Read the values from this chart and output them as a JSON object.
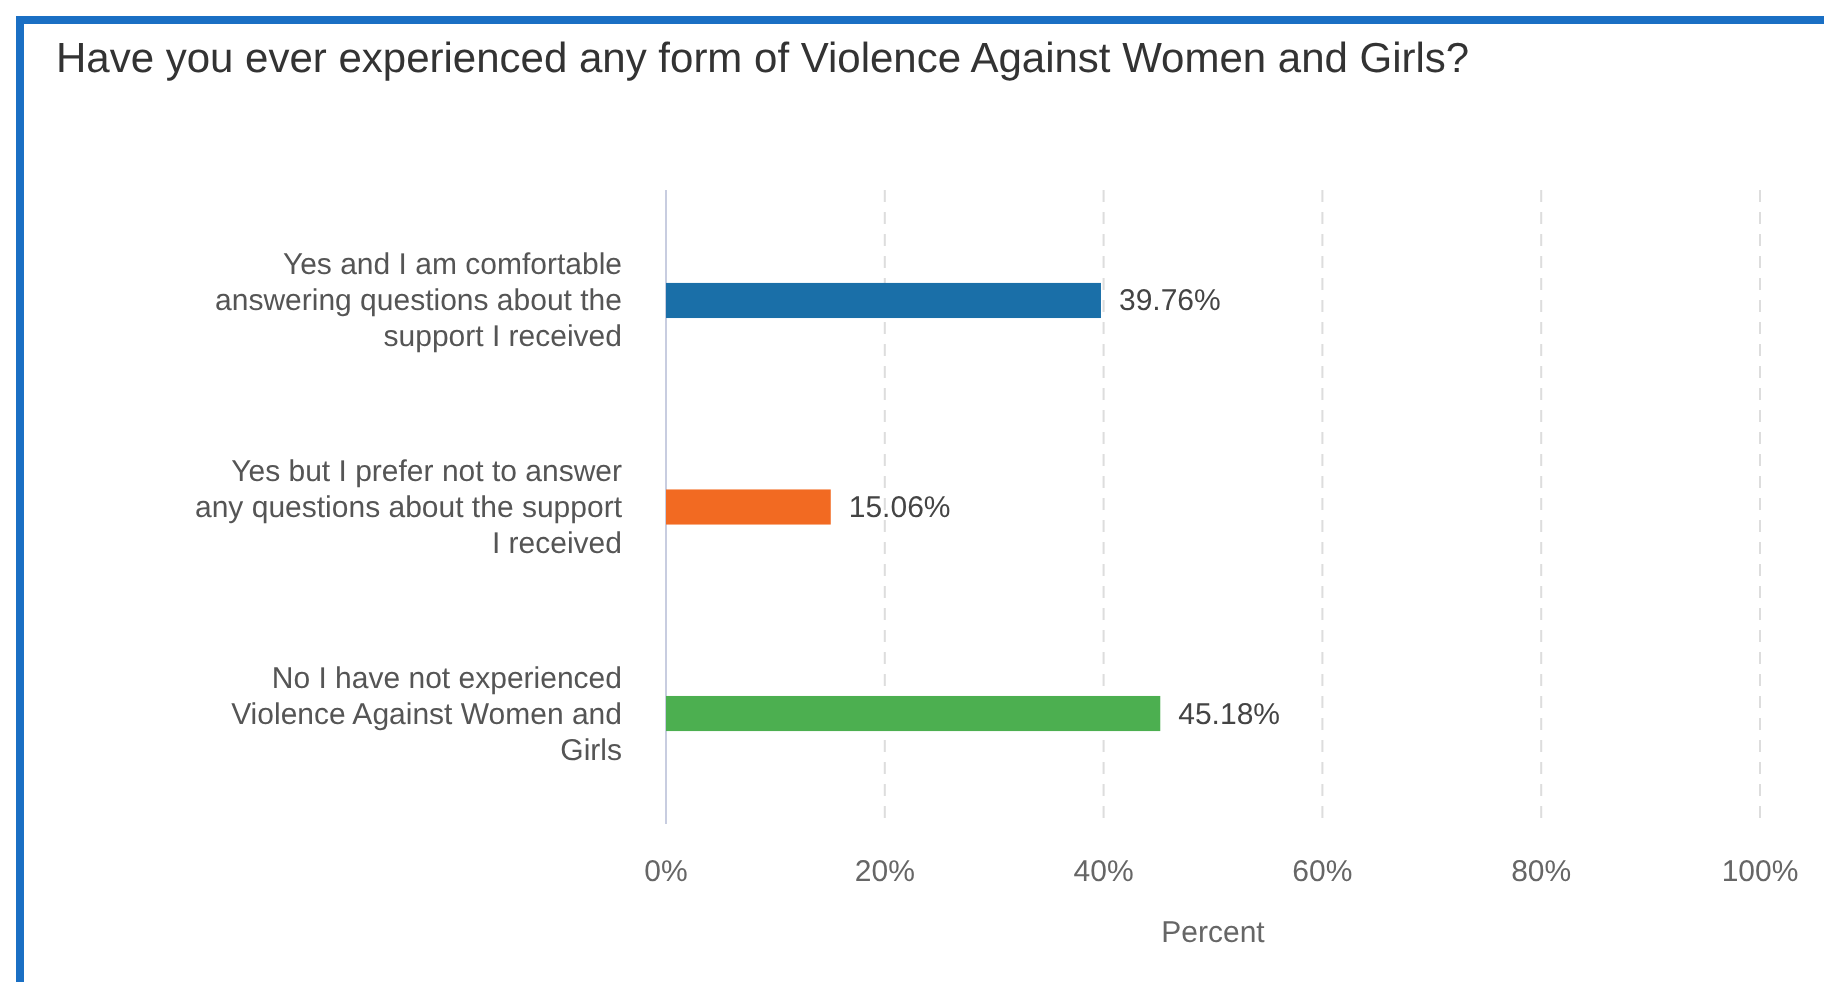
{
  "chart_data": {
    "type": "bar",
    "orientation": "horizontal",
    "title": "Have you ever experienced any form of Violence Against Women and Girls?",
    "xlabel": "Percent",
    "categories": [
      "Yes and I am comfortable answering questions about the support I received",
      "Yes but I prefer not to answer any questions about the support I received",
      "No I have not experienced Violence Against Women and Girls"
    ],
    "values": [
      39.76,
      15.06,
      45.18
    ],
    "colors": [
      "#1a6fa8",
      "#f26a22",
      "#4caf50"
    ],
    "value_labels": [
      "39.76%",
      "15.06%",
      "45.18%"
    ],
    "xlim": [
      0,
      100
    ],
    "xticks": [
      {
        "value": 0,
        "label": "0%"
      },
      {
        "value": 20,
        "label": "20%"
      },
      {
        "value": 40,
        "label": "40%"
      },
      {
        "value": 60,
        "label": "60%"
      },
      {
        "value": 80,
        "label": "80%"
      },
      {
        "value": 100,
        "label": "100%"
      }
    ],
    "grid": "x"
  }
}
